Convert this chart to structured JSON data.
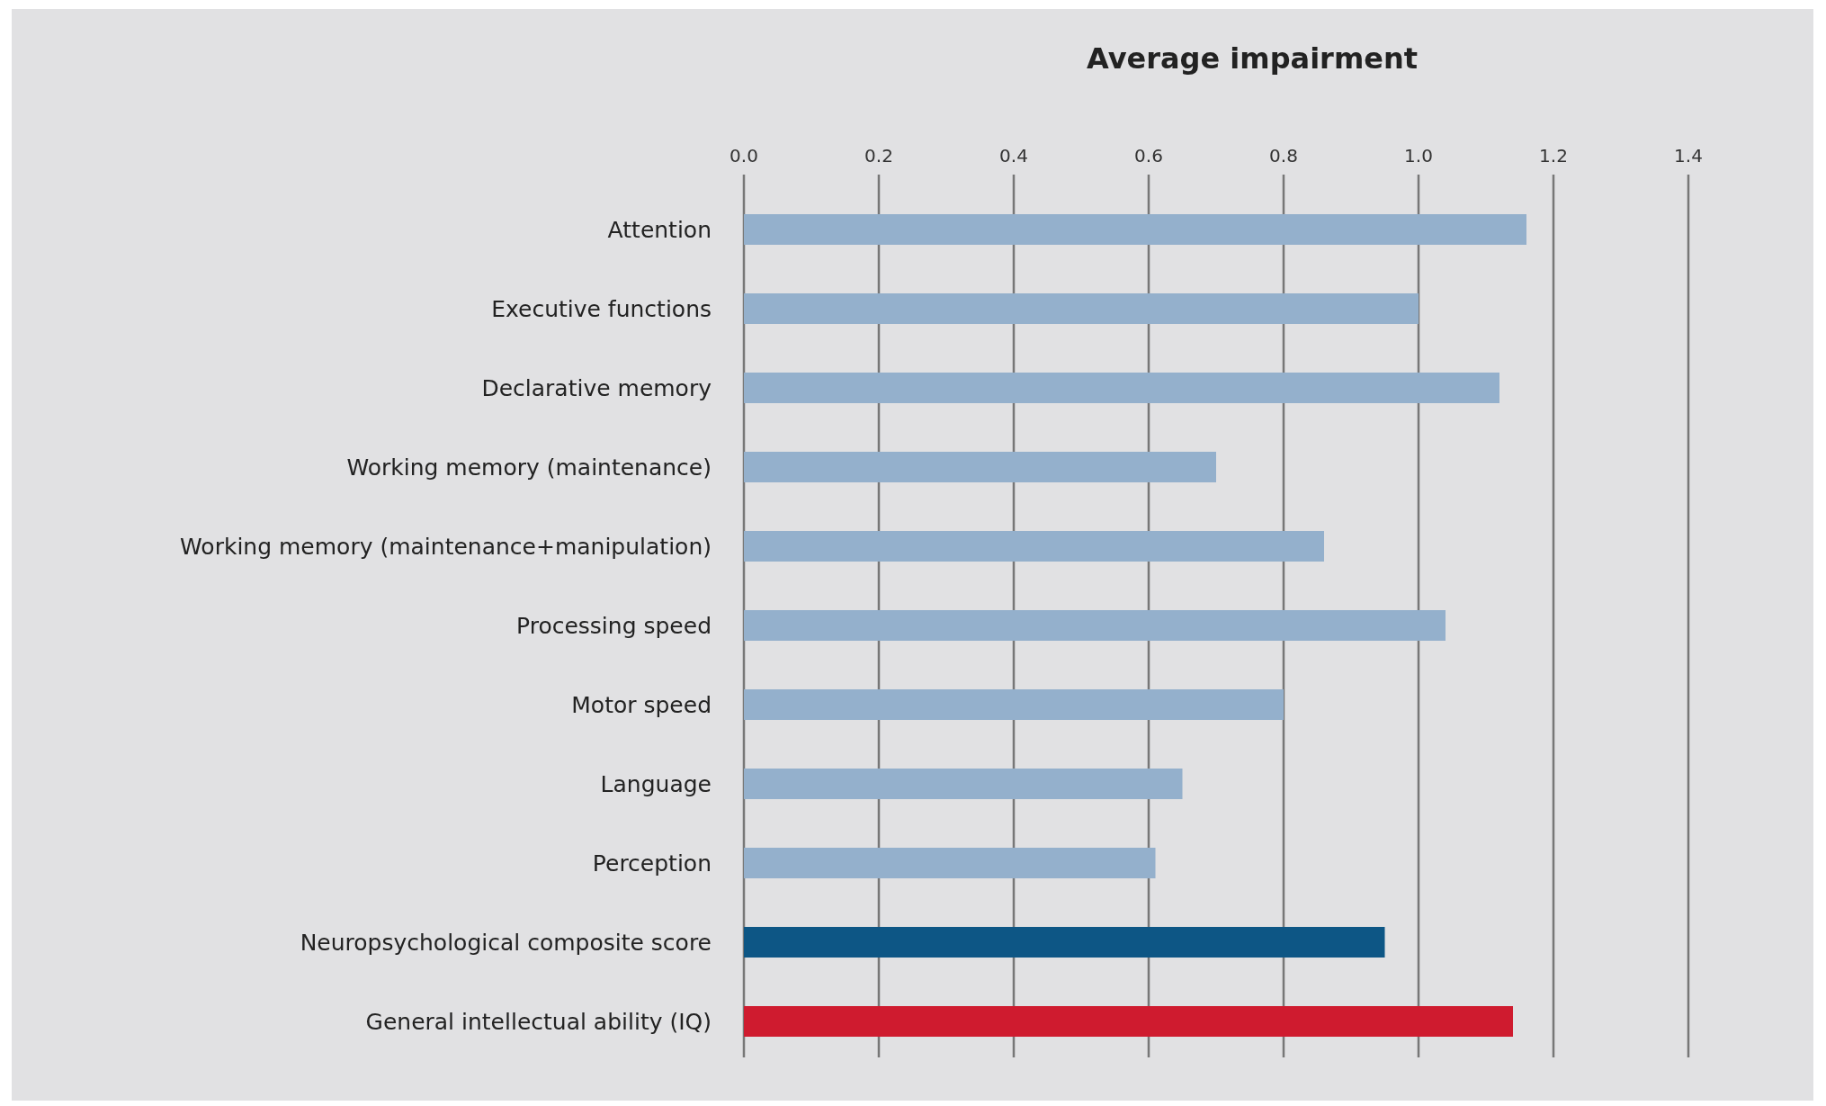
{
  "chart_data": {
    "type": "bar",
    "orientation": "horizontal",
    "xlabel": "Average impairment",
    "categories": [
      "Attention",
      "Executive functions",
      "Declarative memory",
      "Working memory (maintenance)",
      "Working memory (maintenance+manipulation)",
      "Processing speed",
      "Motor speed",
      "Language",
      "Perception",
      "Neuropsychological composite score",
      "General intellectual ability (IQ)"
    ],
    "values": [
      1.16,
      1.0,
      1.12,
      0.7,
      0.86,
      1.04,
      0.8,
      0.65,
      0.61,
      0.95,
      1.14
    ],
    "colors": [
      "#94b0cc",
      "#94b0cc",
      "#94b0cc",
      "#94b0cc",
      "#94b0cc",
      "#94b0cc",
      "#94b0cc",
      "#94b0cc",
      "#94b0cc",
      "#0d5685",
      "#cf1b2f"
    ],
    "xlim": [
      0,
      1.4
    ],
    "xticks": [
      {
        "value": 0,
        "label": "0.0"
      },
      {
        "value": 0.2,
        "label": "0.2"
      },
      {
        "value": 0.4,
        "label": "0.4"
      },
      {
        "value": 0.6,
        "label": "0.6"
      },
      {
        "value": 0.8,
        "label": "0.8"
      },
      {
        "value": 1,
        "label": "1.0"
      },
      {
        "value": 1.2,
        "label": "1.2"
      },
      {
        "value": 1.4,
        "label": "1.4"
      }
    ],
    "grid": "x"
  }
}
